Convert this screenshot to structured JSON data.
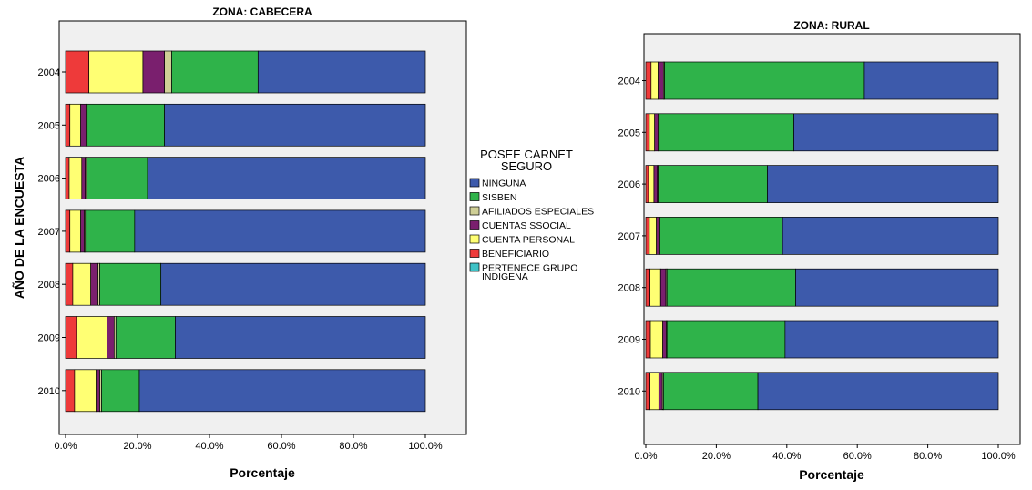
{
  "legend": {
    "title_line1": "POSEE CARNET",
    "title_line2": "SEGURO",
    "items": [
      {
        "label": "NINGUNA",
        "color": "#3d5aab"
      },
      {
        "label": "SISBEN",
        "color": "#2fb34a"
      },
      {
        "label": "AFILIADOS ESPECIALES",
        "color": "#cfcf96"
      },
      {
        "label": "CUENTAS SSOCIAL",
        "color": "#7a1f6e"
      },
      {
        "label": "CUENTA PERSONAL",
        "color": "#ffff73"
      },
      {
        "label": "BENEFICIARIO",
        "color": "#ee3a3a"
      },
      {
        "label": "PERTENECE GRUPO",
        "label2": "INDIGENA",
        "color": "#3ec2c6"
      }
    ]
  },
  "chart_data": [
    {
      "type": "bar",
      "orientation": "horizontal",
      "stacked": "100%",
      "title": "ZONA: CABECERA",
      "xlabel": "Porcentaje",
      "ylabel": "AÑO DE LA ENCUESTA",
      "xlim": [
        0,
        100
      ],
      "xticks": [
        "0.0%",
        "20.0%",
        "40.0%",
        "60.0%",
        "80.0%",
        "100.0%"
      ],
      "categories": [
        "2004",
        "2005",
        "2006",
        "2007",
        "2008",
        "2009",
        "2010"
      ],
      "series": [
        {
          "name": "BENEFICIARIO",
          "values": [
            6.5,
            1.2,
            1.0,
            1.2,
            2.0,
            3.0,
            2.5
          ]
        },
        {
          "name": "CUENTA PERSONAL",
          "values": [
            15.0,
            3.0,
            3.5,
            3.0,
            5.0,
            8.5,
            6.0
          ]
        },
        {
          "name": "CUENTAS SSOCIAL",
          "values": [
            6.0,
            1.5,
            1.0,
            1.0,
            2.0,
            2.0,
            1.0
          ]
        },
        {
          "name": "AFILIADOS ESPECIALES",
          "values": [
            2.0,
            0.3,
            0.3,
            0.3,
            0.5,
            0.5,
            0.5
          ]
        },
        {
          "name": "SISBEN",
          "values": [
            24.0,
            21.5,
            17.0,
            13.7,
            17.0,
            16.5,
            10.5
          ]
        },
        {
          "name": "NINGUNA",
          "values": [
            46.5,
            72.5,
            77.2,
            80.8,
            73.5,
            69.5,
            79.5
          ]
        },
        {
          "name": "PERTENECE GRUPO INDIGENA",
          "values": [
            0,
            0,
            0,
            0,
            0,
            0,
            0
          ]
        }
      ]
    },
    {
      "type": "bar",
      "orientation": "horizontal",
      "stacked": "100%",
      "title": "ZONA: RURAL",
      "xlabel": "Porcentaje",
      "ylabel": "",
      "xlim": [
        0,
        100
      ],
      "xticks": [
        "0.0%",
        "20.0%",
        "40.0%",
        "60.0%",
        "80.0%",
        "100.0%"
      ],
      "categories": [
        "2004",
        "2005",
        "2006",
        "2007",
        "2008",
        "2009",
        "2010"
      ],
      "series": [
        {
          "name": "BENEFICIARIO",
          "values": [
            1.5,
            1.0,
            0.8,
            1.0,
            1.2,
            1.3,
            1.2
          ]
        },
        {
          "name": "CUENTA PERSONAL",
          "values": [
            2.0,
            1.5,
            1.5,
            2.0,
            3.0,
            3.5,
            2.5
          ]
        },
        {
          "name": "CUENTAS SSOCIAL",
          "values": [
            1.5,
            1.0,
            1.0,
            0.8,
            1.5,
            1.0,
            1.0
          ]
        },
        {
          "name": "AFILIADOS ESPECIALES",
          "values": [
            0.3,
            0.3,
            0.2,
            0.2,
            0.3,
            0.2,
            0.3
          ]
        },
        {
          "name": "SISBEN",
          "values": [
            56.7,
            38.2,
            31.0,
            34.8,
            36.5,
            33.5,
            26.8
          ]
        },
        {
          "name": "NINGUNA",
          "values": [
            38.0,
            58.0,
            65.5,
            61.2,
            57.5,
            60.5,
            68.2
          ]
        },
        {
          "name": "PERTENECE GRUPO INDIGENA",
          "values": [
            0,
            0,
            0,
            0,
            0,
            0,
            0
          ]
        }
      ]
    }
  ]
}
